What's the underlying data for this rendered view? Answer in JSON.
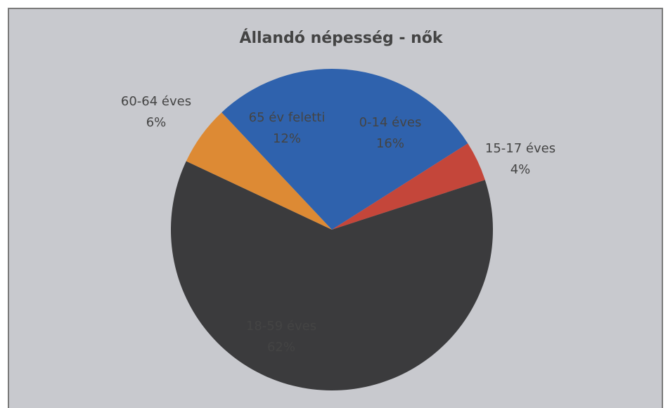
{
  "chart_data": {
    "type": "pie",
    "title": "Állandó népesség - nők",
    "categories": [
      "0-14 éves",
      "15-17 éves",
      "18-59 éves",
      "60-64 éves",
      "65 év feletti"
    ],
    "values": [
      16,
      4,
      62,
      6,
      12
    ],
    "value_labels": [
      "16%",
      "4%",
      "62%",
      "6%",
      "12%"
    ],
    "colors": [
      "#2f62ad",
      "#c4463a",
      "#3b3b3d",
      "#dd8a34",
      "#2f62ad"
    ]
  }
}
